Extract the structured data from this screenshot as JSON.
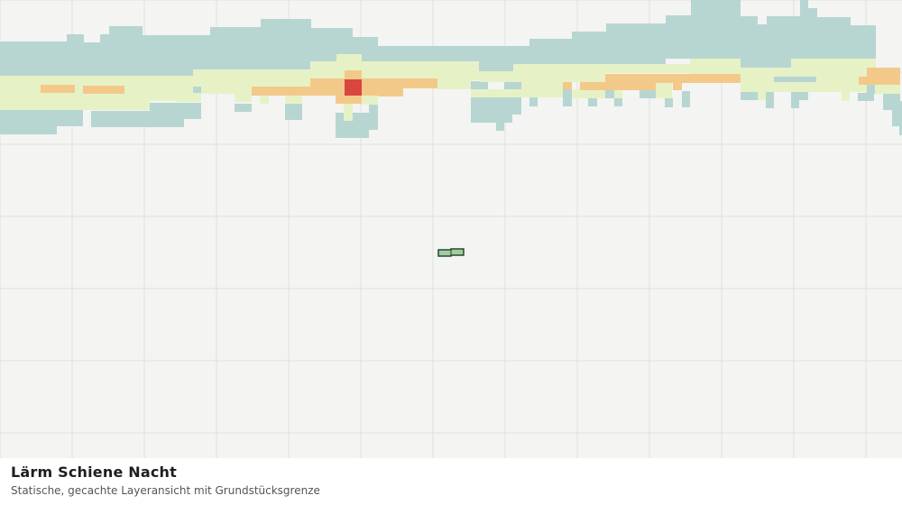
{
  "map": {
    "title": "Lärm Schiene Nacht",
    "subtitle": "Statische, gecachte Layeransicht mit Grundstücksgrenze",
    "colors": {
      "background": "#f4f4f2",
      "grid": "#e0e0dc",
      "noise_low": "#b7d6d2",
      "noise_medium": "#e6f2c6",
      "noise_high": "#f3c98a",
      "noise_very_high": "#d8463f",
      "parcel_fill": "#a8c9a0",
      "parcel_outline": "#1f4d2e"
    }
  }
}
